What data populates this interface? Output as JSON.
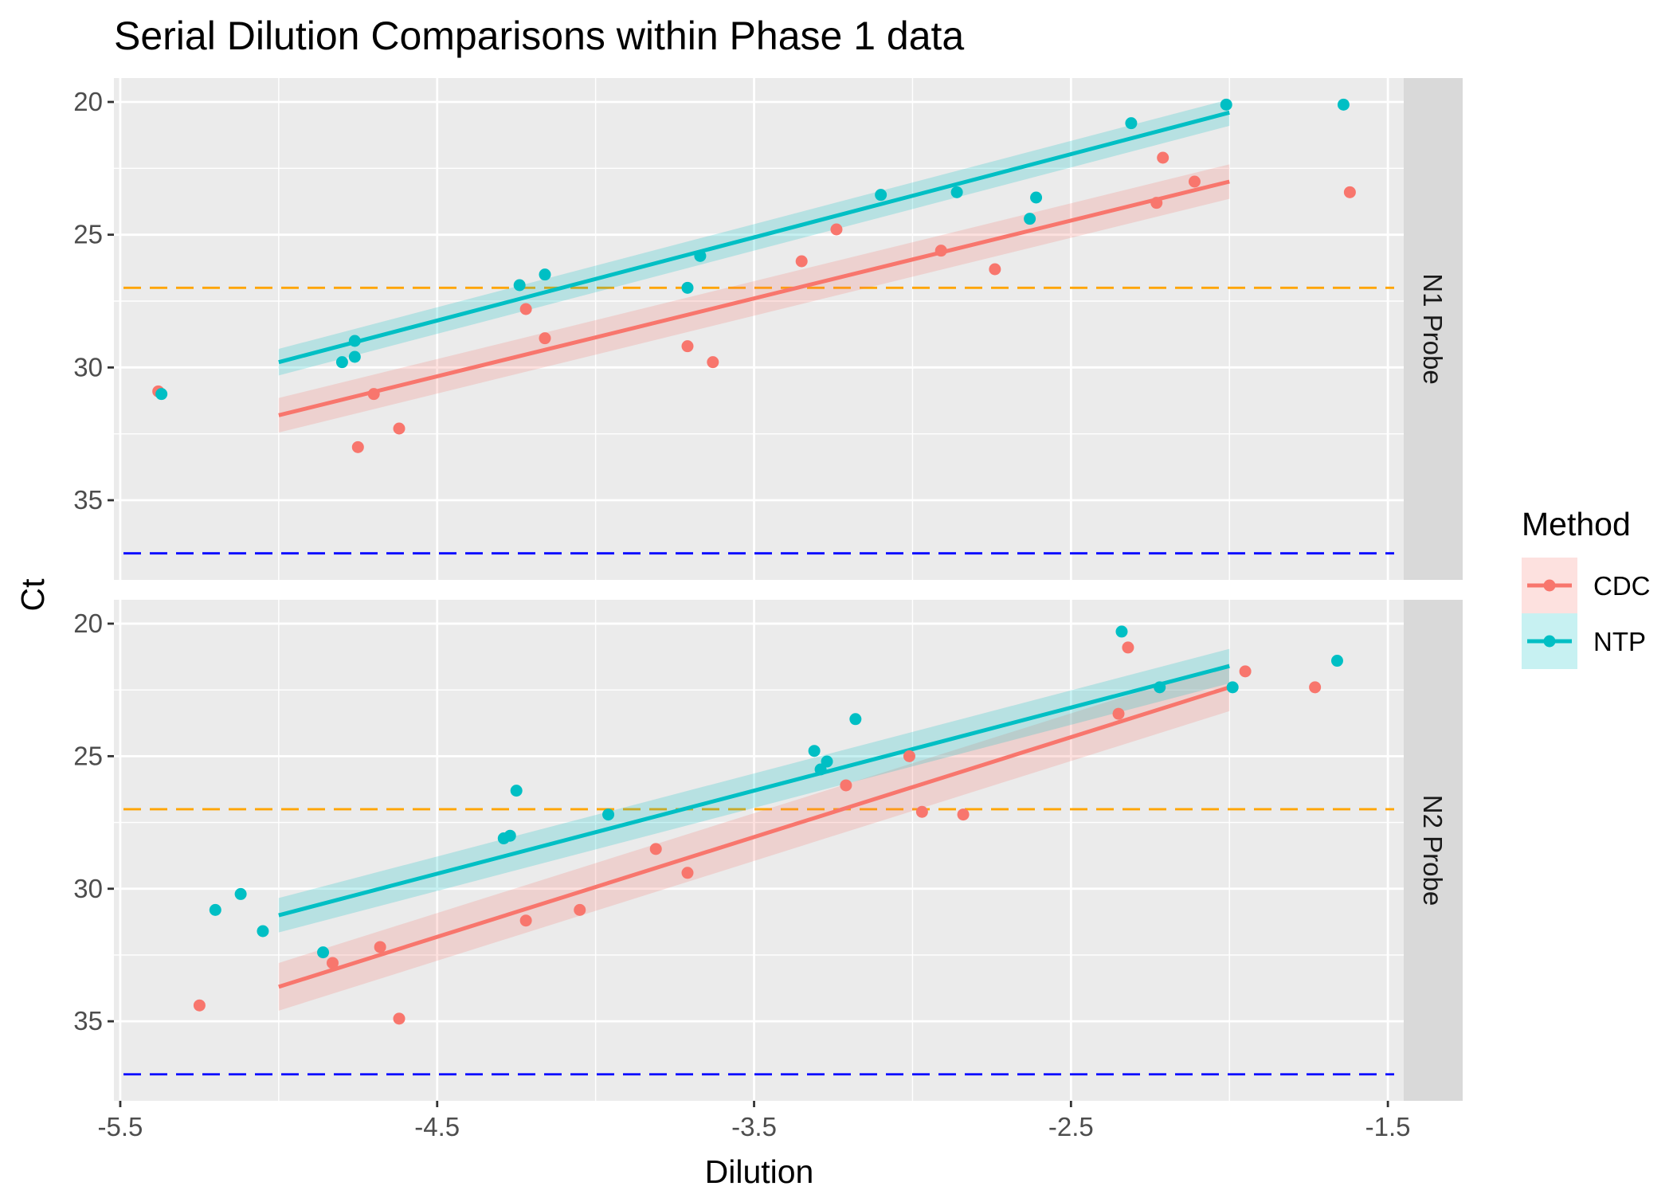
{
  "chart_data": {
    "type": "scatter",
    "title": "Serial Dilution Comparisons within Phase 1 data",
    "xlabel": "Dilution",
    "ylabel": "Ct",
    "xlim": [
      -5.52,
      -1.45
    ],
    "ylim": [
      19.1,
      38.0
    ],
    "y_reversed": true,
    "x_ticks": [
      -5.5,
      -4.5,
      -3.5,
      -2.5,
      -1.5
    ],
    "x_tick_labels": [
      "-5.5",
      "-4.5",
      "-3.5",
      "-2.5",
      "-1.5"
    ],
    "y_ticks": [
      20,
      25,
      30,
      35
    ],
    "y_tick_labels": [
      "20",
      "25",
      "30",
      "35"
    ],
    "grid": true,
    "legend": {
      "title": "Method",
      "position": "right",
      "entries": [
        "CDC",
        "NTP"
      ]
    },
    "colors": {
      "CDC": "#F8766D",
      "NTP": "#00BFC4",
      "threshold_orange": "#FFA500",
      "threshold_blue": "#0000FF",
      "panel_bg": "#EBEBEB",
      "strip_bg": "#D9D9D9"
    },
    "reference_lines": [
      {
        "y": 27.0,
        "color": "orange",
        "style": "dashed"
      },
      {
        "y": 37.0,
        "color": "blue",
        "style": "dashed"
      }
    ],
    "panels": [
      {
        "strip_label": "N1 Probe",
        "series": [
          {
            "name": "CDC",
            "points": [
              [
                -5.38,
                30.9
              ],
              [
                -4.75,
                33.0
              ],
              [
                -4.7,
                31.0
              ],
              [
                -4.62,
                32.3
              ],
              [
                -4.22,
                27.8
              ],
              [
                -4.16,
                28.9
              ],
              [
                -3.71,
                29.2
              ],
              [
                -3.63,
                29.8
              ],
              [
                -3.35,
                26.0
              ],
              [
                -3.24,
                24.8
              ],
              [
                -2.91,
                25.6
              ],
              [
                -2.74,
                26.3
              ],
              [
                -2.23,
                23.8
              ],
              [
                -2.21,
                22.1
              ],
              [
                -2.11,
                23.0
              ],
              [
                -1.62,
                23.4
              ]
            ],
            "fit": {
              "x": [
                -5.0,
                -2.0
              ],
              "y": [
                31.8,
                23.0
              ],
              "se": 0.65
            }
          },
          {
            "name": "NTP",
            "points": [
              [
                -5.37,
                31.0
              ],
              [
                -4.8,
                29.8
              ],
              [
                -4.76,
                29.6
              ],
              [
                -4.76,
                29.0
              ],
              [
                -4.24,
                26.9
              ],
              [
                -4.16,
                26.5
              ],
              [
                -3.71,
                27.0
              ],
              [
                -3.67,
                25.8
              ],
              [
                -3.1,
                23.5
              ],
              [
                -2.86,
                23.4
              ],
              [
                -2.63,
                24.4
              ],
              [
                -2.61,
                23.6
              ],
              [
                -2.31,
                20.8
              ],
              [
                -2.01,
                20.1
              ],
              [
                -1.64,
                20.1
              ]
            ],
            "fit": {
              "x": [
                -5.0,
                -2.0
              ],
              "y": [
                29.8,
                20.4
              ],
              "se": 0.5
            }
          }
        ]
      },
      {
        "strip_label": "N2 Probe",
        "series": [
          {
            "name": "CDC",
            "points": [
              [
                -5.25,
                34.4
              ],
              [
                -4.83,
                32.8
              ],
              [
                -4.68,
                32.2
              ],
              [
                -4.62,
                34.9
              ],
              [
                -4.22,
                31.2
              ],
              [
                -4.05,
                30.8
              ],
              [
                -3.81,
                28.5
              ],
              [
                -3.71,
                29.4
              ],
              [
                -3.21,
                26.1
              ],
              [
                -3.01,
                25.0
              ],
              [
                -2.97,
                27.1
              ],
              [
                -2.84,
                27.2
              ],
              [
                -2.35,
                23.4
              ],
              [
                -2.32,
                20.9
              ],
              [
                -1.95,
                21.8
              ],
              [
                -1.73,
                22.4
              ]
            ],
            "fit": {
              "x": [
                -5.0,
                -2.0
              ],
              "y": [
                33.7,
                22.4
              ],
              "se": 0.9
            }
          },
          {
            "name": "NTP",
            "points": [
              [
                -5.2,
                30.8
              ],
              [
                -5.12,
                30.2
              ],
              [
                -5.05,
                31.6
              ],
              [
                -4.86,
                32.4
              ],
              [
                -4.29,
                28.1
              ],
              [
                -4.27,
                28.0
              ],
              [
                -4.25,
                26.3
              ],
              [
                -3.96,
                27.2
              ],
              [
                -3.31,
                24.8
              ],
              [
                -3.29,
                25.5
              ],
              [
                -3.27,
                25.2
              ],
              [
                -3.18,
                23.6
              ],
              [
                -2.34,
                20.3
              ],
              [
                -2.22,
                22.4
              ],
              [
                -1.99,
                22.4
              ],
              [
                -1.66,
                21.4
              ]
            ],
            "fit": {
              "x": [
                -5.0,
                -2.0
              ],
              "y": [
                31.0,
                21.6
              ],
              "se": 0.65
            }
          }
        ]
      }
    ]
  }
}
